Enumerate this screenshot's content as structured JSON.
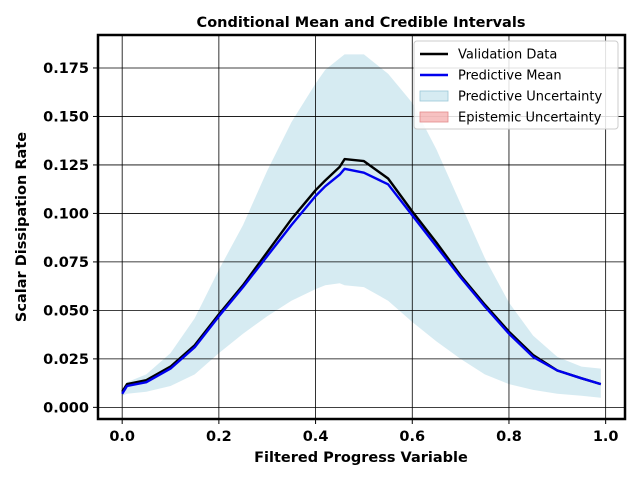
{
  "chart_data": {
    "type": "line",
    "title": "Conditional Mean and Credible Intervals",
    "xlabel": "Filtered Progress Variable",
    "ylabel": "Scalar Dissipation Rate",
    "xlim": [
      -0.05,
      1.04
    ],
    "ylim": [
      -0.006,
      0.192
    ],
    "xticks": [
      0.0,
      0.2,
      0.4,
      0.6,
      0.8,
      1.0
    ],
    "xtick_labels": [
      "0.0",
      "0.2",
      "0.4",
      "0.6",
      "0.8",
      "1.0"
    ],
    "yticks": [
      0.0,
      0.025,
      0.05,
      0.075,
      0.1,
      0.125,
      0.15,
      0.175
    ],
    "ytick_labels": [
      "0.000",
      "0.025",
      "0.050",
      "0.075",
      "0.100",
      "0.125",
      "0.150",
      "0.175"
    ],
    "grid": true,
    "legend_position": "top-right",
    "x": [
      0.0,
      0.01,
      0.05,
      0.1,
      0.15,
      0.2,
      0.25,
      0.3,
      0.35,
      0.4,
      0.42,
      0.45,
      0.46,
      0.5,
      0.55,
      0.6,
      0.65,
      0.7,
      0.75,
      0.8,
      0.85,
      0.9,
      0.95,
      0.99
    ],
    "series": [
      {
        "name": "Validation Data",
        "color": "#000000",
        "style": "line",
        "values": [
          0.008,
          0.012,
          0.014,
          0.021,
          0.032,
          0.048,
          0.063,
          0.08,
          0.097,
          0.112,
          0.117,
          0.124,
          0.128,
          0.127,
          0.118,
          0.101,
          0.085,
          0.068,
          0.053,
          0.039,
          0.027,
          0.019,
          0.015,
          0.012
        ]
      },
      {
        "name": "Predictive Mean",
        "color": "#0000ee",
        "style": "line",
        "values": [
          0.007,
          0.011,
          0.013,
          0.02,
          0.031,
          0.047,
          0.062,
          0.078,
          0.094,
          0.109,
          0.114,
          0.12,
          0.123,
          0.121,
          0.115,
          0.099,
          0.083,
          0.067,
          0.052,
          0.038,
          0.026,
          0.019,
          0.015,
          0.012
        ]
      },
      {
        "name": "Predictive Uncertainty",
        "color": "#add8e6",
        "style": "band",
        "lower": [
          0.006,
          0.007,
          0.008,
          0.011,
          0.017,
          0.028,
          0.038,
          0.047,
          0.055,
          0.061,
          0.063,
          0.064,
          0.063,
          0.062,
          0.055,
          0.044,
          0.034,
          0.025,
          0.017,
          0.012,
          0.009,
          0.007,
          0.006,
          0.005
        ],
        "upper": [
          0.009,
          0.013,
          0.017,
          0.028,
          0.046,
          0.071,
          0.094,
          0.122,
          0.147,
          0.167,
          0.174,
          0.18,
          0.182,
          0.182,
          0.172,
          0.157,
          0.133,
          0.105,
          0.077,
          0.054,
          0.037,
          0.026,
          0.021,
          0.02
        ]
      },
      {
        "name": "Epistemic Uncertainty",
        "color": "#f4a6a6",
        "style": "band-legend-only"
      }
    ]
  }
}
